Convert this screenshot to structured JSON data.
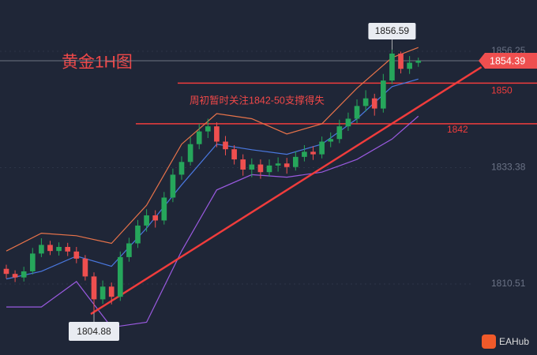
{
  "chart_data": {
    "type": "candlestick",
    "title": "黄金1H图",
    "annotation": "周初暂时关注1842-50支撑得失",
    "brand": "EAHub",
    "up_color": "#26a65b",
    "down_color": "#ef4f4f",
    "xlim": [
      -0.72,
      53.33
    ],
    "ylim": [
      1796.56,
      1866.33
    ],
    "yticks": [
      1856.25,
      1833.38,
      1810.51
    ],
    "grid": true,
    "open": [
      1813.5,
      1812.5,
      1811.8,
      1813.0,
      1816.5,
      1818.2,
      1817.0,
      1817.8,
      1816.9,
      1815.5,
      1812.0,
      1807.5,
      1810.0,
      1808.0,
      1815.8,
      1818.5,
      1822.0,
      1824.0,
      1823.0,
      1827.5,
      1832.0,
      1834.5,
      1838.0,
      1840.5,
      1841.5,
      1838.5,
      1837.0,
      1835.0,
      1833.0,
      1834.0,
      1832.5,
      1833.8,
      1834.2,
      1833.5,
      1835.5,
      1836.5,
      1836.0,
      1838.5,
      1839.0,
      1841.5,
      1843.0,
      1845.5,
      1847.0,
      1845.0,
      1850.5,
      1855.8,
      1852.8,
      1854.0
    ],
    "high": [
      1814.3,
      1813.2,
      1813.9,
      1817.6,
      1819.5,
      1819.0,
      1818.7,
      1818.6,
      1817.8,
      1816.2,
      1812.8,
      1811.2,
      1810.8,
      1816.9,
      1819.6,
      1823.1,
      1825.2,
      1825.0,
      1828.6,
      1833.2,
      1835.6,
      1839.4,
      1842.0,
      1843.0,
      1842.3,
      1839.6,
      1837.8,
      1836.0,
      1835.2,
      1835.0,
      1835.0,
      1835.4,
      1835.3,
      1836.6,
      1837.8,
      1837.6,
      1839.5,
      1840.3,
      1842.8,
      1844.2,
      1846.8,
      1848.6,
      1847.9,
      1851.8,
      1856.59,
      1856.2,
      1855.3,
      1855.0
    ],
    "low": [
      1811.6,
      1810.9,
      1811.0,
      1812.4,
      1815.8,
      1816.2,
      1816.1,
      1816.0,
      1814.6,
      1811.2,
      1804.88,
      1806.6,
      1806.5,
      1807.2,
      1814.9,
      1817.6,
      1820.8,
      1821.6,
      1822.2,
      1826.6,
      1831.0,
      1833.8,
      1837.0,
      1839.2,
      1837.4,
      1835.8,
      1834.0,
      1831.8,
      1831.5,
      1831.2,
      1831.6,
      1832.6,
      1832.2,
      1832.8,
      1834.6,
      1834.9,
      1835.2,
      1837.4,
      1838.2,
      1840.6,
      1842.1,
      1844.4,
      1843.6,
      1844.2,
      1849.8,
      1851.9,
      1851.8,
      1853.2
    ],
    "close": [
      1812.5,
      1811.8,
      1813.0,
      1816.5,
      1818.2,
      1817.0,
      1817.8,
      1816.9,
      1815.5,
      1812.0,
      1807.5,
      1810.0,
      1808.0,
      1815.8,
      1818.5,
      1822.0,
      1824.0,
      1823.0,
      1827.5,
      1832.0,
      1834.5,
      1838.0,
      1840.5,
      1841.5,
      1838.5,
      1837.0,
      1835.0,
      1833.0,
      1834.0,
      1832.5,
      1833.8,
      1834.2,
      1833.5,
      1835.5,
      1836.5,
      1836.0,
      1838.5,
      1839.0,
      1841.5,
      1843.0,
      1845.5,
      1847.0,
      1845.0,
      1850.5,
      1855.8,
      1852.8,
      1854.0,
      1854.39
    ],
    "band_x": [
      0,
      4,
      8,
      12,
      16,
      20,
      24,
      28,
      32,
      36,
      40,
      44,
      47
    ],
    "bands": [
      {
        "color": "#e8734a",
        "values": [
          1817,
          1820.5,
          1820,
          1818.5,
          1826,
          1838,
          1844,
          1843,
          1840,
          1842,
          1849,
          1855,
          1857
        ]
      },
      {
        "color": "#4a78e0",
        "values": [
          1811.5,
          1813,
          1816,
          1814,
          1821.5,
          1830,
          1838,
          1836.9,
          1836,
          1838,
          1843,
          1849.3,
          1850.8
        ]
      },
      {
        "color": "#9a5ae0",
        "values": [
          1806,
          1806,
          1811,
          1802,
          1803,
          1817,
          1829,
          1832,
          1831.5,
          1832.5,
          1835,
          1839,
          1843.5
        ]
      }
    ],
    "trendline": {
      "x": [
        9.64,
        54.2
      ],
      "values": [
        1804.62,
        1853.15
      ],
      "color": "#f03c3c"
    },
    "levels": [
      1850,
      1842
    ],
    "level_color": "#f03c3c",
    "last_price": 1854.39
  }
}
